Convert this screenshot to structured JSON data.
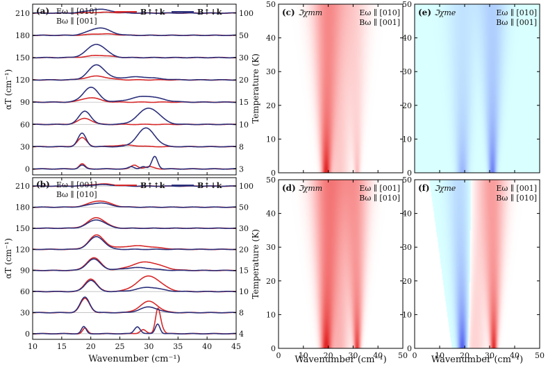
{
  "chart_data": [
    {
      "type": "line",
      "panel": "a",
      "label": "(a)",
      "legend_pol": [
        "Eω ∥ [010]",
        "Bω ∥ [001]"
      ],
      "legend_series": [
        "B↑↑k",
        "B↑↓k"
      ],
      "xlim": [
        10,
        45
      ],
      "ylim": [
        -8,
        222
      ],
      "ylabel": "αT (cm⁻¹)",
      "yticks": [
        0,
        30,
        60,
        90,
        120,
        150,
        180,
        210
      ],
      "xticks": [
        10,
        15,
        20,
        25,
        30,
        35,
        40,
        45
      ],
      "fields_T": [
        "3",
        "8",
        "10",
        "15",
        "20",
        "30",
        "50",
        "100"
      ],
      "offsets": [
        0,
        30,
        60,
        90,
        120,
        150,
        180,
        210
      ],
      "series": [
        {
          "name": "B↑↑k",
          "color": "#d62728",
          "peaks": [
            [
              [
                18.5,
                7,
                0.5
              ],
              [
                27.5,
                5,
                0.6
              ],
              [
                30,
                3,
                0.8
              ]
            ],
            [
              [
                18.5,
                12,
                0.8
              ],
              [
                26,
                2,
                2
              ]
            ],
            [
              [
                19,
                8,
                1.2
              ]
            ],
            [
              [
                20,
                6,
                1.5
              ]
            ],
            [
              [
                21,
                5,
                1.8
              ]
            ],
            [
              [
                21.5,
                3,
                2
              ]
            ],
            [
              [
                22,
                2,
                2.2
              ]
            ],
            [
              [
                22.5,
                1,
                2.5
              ]
            ]
          ]
        },
        {
          "name": "B↑↓k",
          "color": "#2b2f7a",
          "peaks": [
            [
              [
                18.5,
                5,
                0.5
              ],
              [
                27,
                3,
                0.5
              ],
              [
                31,
                17,
                0.5
              ],
              [
                29,
                3,
                0.5
              ]
            ],
            [
              [
                18.5,
                18,
                0.7
              ],
              [
                29.5,
                25,
                1.5
              ]
            ],
            [
              [
                19,
                18,
                1
              ],
              [
                30,
                22,
                1.8
              ]
            ],
            [
              [
                20,
                20,
                1.3
              ],
              [
                29.5,
                8,
                2.5
              ]
            ],
            [
              [
                21,
                20,
                1.4
              ],
              [
                28,
                4,
                3
              ]
            ],
            [
              [
                21,
                18,
                1.6
              ]
            ],
            [
              [
                21.5,
                10,
                1.8
              ]
            ],
            [
              [
                21.5,
                5,
                2
              ]
            ]
          ]
        }
      ]
    },
    {
      "type": "line",
      "panel": "b",
      "label": "(b)",
      "legend_pol": [
        "Eω ∥ [001]",
        "Bω ∥ [010]"
      ],
      "legend_series": [
        "B↑↑k",
        "B↑↓k"
      ],
      "xlim": [
        10,
        45
      ],
      "ylim": [
        -8,
        222
      ],
      "ylabel": "αT (cm⁻¹)",
      "xlabel": "Wavenumber (cm⁻¹)",
      "yticks": [
        0,
        30,
        60,
        90,
        120,
        150,
        180,
        210
      ],
      "xticks": [
        10,
        15,
        20,
        25,
        30,
        35,
        40,
        45
      ],
      "fields_T": [
        "4",
        "8",
        "10",
        "15",
        "20",
        "30",
        "50",
        "100"
      ],
      "offsets": [
        0,
        30,
        60,
        90,
        120,
        150,
        180,
        210
      ],
      "series": [
        {
          "name": "B↑↑k",
          "color": "#d62728",
          "peaks": [
            [
              [
                19,
                8,
                0.4
              ],
              [
                29,
                6,
                0.5
              ],
              [
                31.5,
                30,
                0.4
              ],
              [
                32,
                10,
                0.5
              ]
            ],
            [
              [
                19,
                20,
                0.8
              ],
              [
                30,
                16,
                1.5
              ]
            ],
            [
              [
                20,
                18,
                1
              ],
              [
                30,
                22,
                2
              ]
            ],
            [
              [
                20.5,
                18,
                1.2
              ],
              [
                29.5,
                12,
                2.5
              ]
            ],
            [
              [
                21,
                20,
                1.3
              ],
              [
                28,
                5,
                3
              ]
            ],
            [
              [
                21,
                15,
                1.5
              ]
            ],
            [
              [
                21.5,
                9,
                1.8
              ]
            ],
            [
              [
                22,
                3,
                2
              ]
            ]
          ]
        },
        {
          "name": "B↑↓k",
          "color": "#2b2f7a",
          "peaks": [
            [
              [
                18.8,
                10,
                0.4
              ],
              [
                28,
                10,
                0.5
              ],
              [
                31.5,
                14,
                0.4
              ]
            ],
            [
              [
                19,
                22,
                0.8
              ],
              [
                30,
                8,
                1.5
              ]
            ],
            [
              [
                20,
                16,
                1
              ],
              [
                30,
                6,
                2
              ]
            ],
            [
              [
                20.5,
                16,
                1.2
              ],
              [
                28,
                4,
                2.5
              ]
            ],
            [
              [
                21,
                18,
                1.3
              ]
            ],
            [
              [
                21,
                12,
                1.5
              ]
            ],
            [
              [
                21.5,
                6,
                1.8
              ]
            ],
            [
              [
                22,
                2,
                2
              ]
            ]
          ]
        }
      ]
    },
    {
      "type": "heatmap",
      "panel": "c",
      "label": "(c)",
      "quantity": "ℑχmm",
      "legend_pol": [
        "Eω ∥ [010]",
        "Bω ∥ [001]"
      ],
      "xlim": [
        0,
        50
      ],
      "ylim": [
        0,
        50
      ],
      "xticks": [
        0,
        10,
        20,
        30,
        40,
        50
      ],
      "yticks": [
        0,
        10,
        20,
        30,
        40,
        50
      ],
      "ylabel": "Temperature (K)",
      "features": [
        [
          19,
          1.0,
          1.2,
          "red"
        ],
        [
          24,
          0.25,
          3,
          "red"
        ],
        [
          31.5,
          0.3,
          0.8,
          "red"
        ]
      ]
    },
    {
      "type": "heatmap",
      "panel": "e",
      "label": "(e)",
      "quantity": "ℑχme",
      "legend_pol": [
        "Eω ∥ [010]",
        "Bω ∥ [001]"
      ],
      "xlim": [
        0,
        50
      ],
      "ylim": [
        0,
        50
      ],
      "xticks": [
        0,
        10,
        20,
        30,
        40,
        50
      ],
      "yticks": [
        0,
        10,
        20,
        30,
        40,
        50
      ],
      "features": [
        [
          19,
          0.35,
          1.5,
          "blue"
        ],
        [
          31,
          0.6,
          1,
          "blue"
        ]
      ]
    },
    {
      "type": "heatmap",
      "panel": "d",
      "label": "(d)",
      "quantity": "ℑχmm",
      "legend_pol": [
        "Eω ∥ [001]",
        "Bω ∥ [010]"
      ],
      "xlim": [
        0,
        50
      ],
      "ylim": [
        0,
        50
      ],
      "xticks": [
        0,
        10,
        20,
        30,
        40,
        50
      ],
      "yticks": [
        0,
        10,
        20,
        30,
        40,
        50
      ],
      "ylabel": "Temperature (K)",
      "xlabel": "Wavenumber (cm⁻¹)",
      "features": [
        [
          19,
          1.0,
          1.4,
          "red"
        ],
        [
          24,
          0.35,
          3,
          "red"
        ],
        [
          31.5,
          0.9,
          0.9,
          "red"
        ]
      ]
    },
    {
      "type": "heatmap",
      "panel": "f",
      "label": "(f)",
      "quantity": "ℑχme",
      "legend_pol": [
        "Eω ∥ [001]",
        "Bω ∥ [010]"
      ],
      "xlim": [
        0,
        50
      ],
      "ylim": [
        0,
        50
      ],
      "xticks": [
        0,
        10,
        20,
        30,
        40,
        50
      ],
      "yticks": [
        0,
        10,
        20,
        30,
        40,
        50
      ],
      "xlabel": "Wavenumber (cm⁻¹)",
      "features": [
        [
          19,
          0.8,
          1.2,
          "blue"
        ],
        [
          31.5,
          1.0,
          0.9,
          "red"
        ],
        [
          24,
          0.2,
          3,
          "red"
        ]
      ]
    }
  ]
}
